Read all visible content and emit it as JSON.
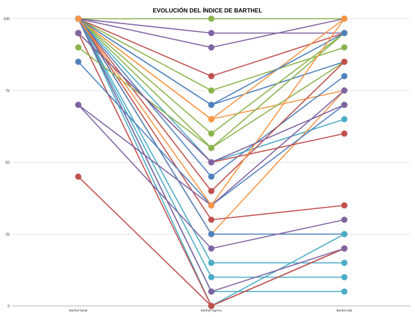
{
  "chart_data": {
    "type": "line",
    "title": "EVOLUCIÓN DEL ÍNDICE DE BARTHEL",
    "xlabel": "",
    "ylabel": "",
    "categories": [
      "Barthel basal",
      "Barthel ingreso",
      "Barthel alta"
    ],
    "ylim": [
      0,
      100
    ],
    "yticks": [
      0,
      25,
      50,
      75,
      100
    ],
    "grid": true,
    "legend": "none",
    "series": [
      {
        "color": "#8BB34C",
        "values": [
          100,
          100,
          100
        ]
      },
      {
        "color": "#8064A2",
        "values": [
          100,
          95,
          95
        ]
      },
      {
        "color": "#8064A2",
        "values": [
          100,
          90,
          100
        ]
      },
      {
        "color": "#C0504D",
        "values": [
          100,
          80,
          95
        ]
      },
      {
        "color": "#8BB34C",
        "values": [
          100,
          75,
          90
        ]
      },
      {
        "color": "#4F81BD",
        "values": [
          100,
          70,
          85
        ]
      },
      {
        "color": "#F79646",
        "values": [
          100,
          65,
          75
        ]
      },
      {
        "color": "#8BB34C",
        "values": [
          100,
          60,
          95
        ]
      },
      {
        "color": "#8BB34C",
        "values": [
          100,
          55,
          85
        ]
      },
      {
        "color": "#4BACC6",
        "values": [
          100,
          50,
          65
        ]
      },
      {
        "color": "#4F81BD",
        "values": [
          100,
          45,
          80
        ]
      },
      {
        "color": "#C0504D",
        "values": [
          100,
          40,
          85
        ]
      },
      {
        "color": "#F79646",
        "values": [
          100,
          25,
          75
        ]
      },
      {
        "color": "#C0504D",
        "values": [
          100,
          30,
          35
        ]
      },
      {
        "color": "#4F81BD",
        "values": [
          100,
          25,
          25
        ]
      },
      {
        "color": "#4BACC6",
        "values": [
          100,
          15,
          15
        ]
      },
      {
        "color": "#4BACC6",
        "values": [
          100,
          10,
          10
        ]
      },
      {
        "color": "#4BACC6",
        "values": [
          100,
          5,
          5
        ]
      },
      {
        "color": "#4BACC6",
        "values": [
          100,
          0,
          25
        ]
      },
      {
        "color": "#C0504D",
        "values": [
          95,
          0,
          20
        ]
      },
      {
        "color": "#8BB34C",
        "values": [
          90,
          55,
          95
        ]
      },
      {
        "color": "#4F81BD",
        "values": [
          85,
          35,
          70
        ]
      },
      {
        "color": "#8064A2",
        "values": [
          70,
          35,
          75
        ]
      },
      {
        "color": "#8064A2",
        "values": [
          70,
          20,
          30
        ]
      },
      {
        "color": "#C0504D",
        "values": [
          45,
          0,
          20
        ]
      },
      {
        "color": "#F79646",
        "values": [
          100,
          65,
          100
        ]
      },
      {
        "color": "#8064A2",
        "values": [
          100,
          5,
          20
        ]
      },
      {
        "color": "#C0504D",
        "values": [
          95,
          50,
          60
        ]
      },
      {
        "color": "#4F81BD",
        "values": [
          100,
          70,
          95
        ]
      },
      {
        "color": "#F79646",
        "values": [
          100,
          35,
          100
        ]
      },
      {
        "color": "#8064A2",
        "values": [
          95,
          50,
          70
        ]
      }
    ]
  }
}
